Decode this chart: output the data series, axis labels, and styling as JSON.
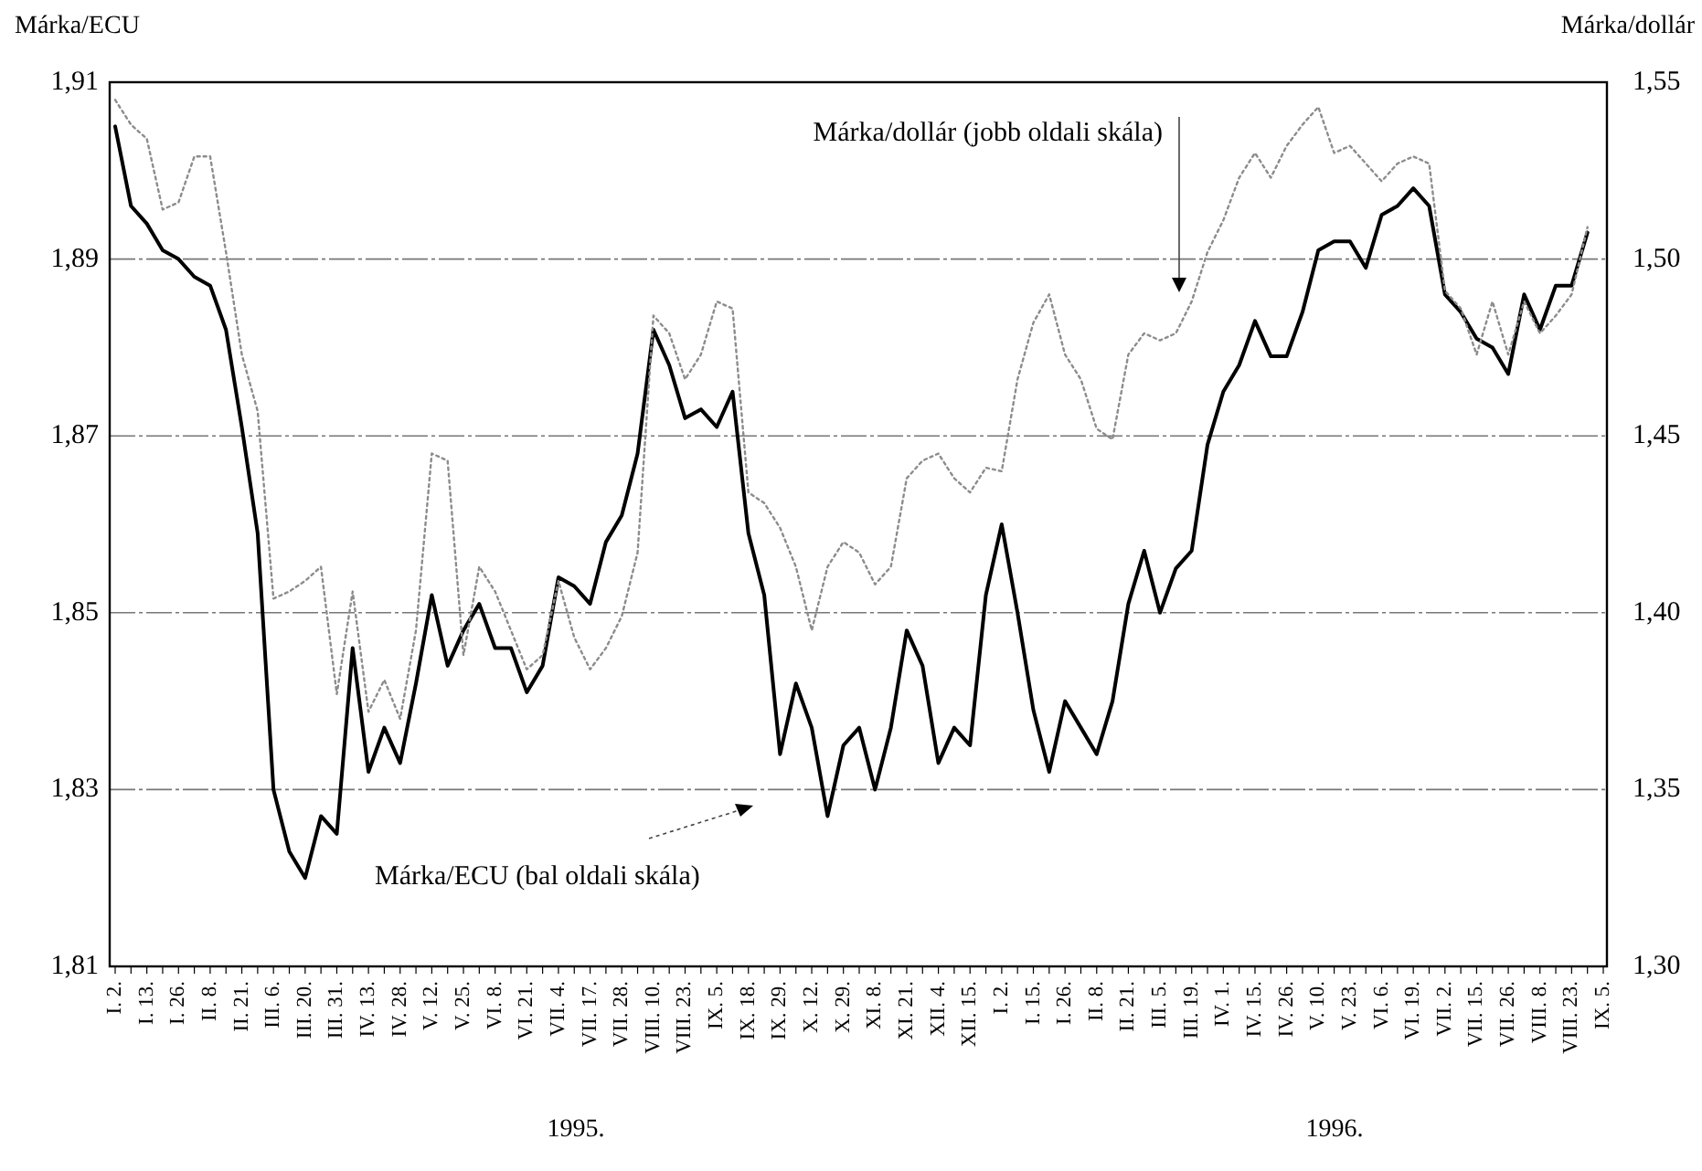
{
  "chart_data": {
    "type": "line",
    "ylabel": "Márka/ECU",
    "y2label": "Márka/dollár",
    "categories": [
      "I. 2.",
      null,
      "I. 13.",
      null,
      "I. 26.",
      null,
      "II. 8.",
      null,
      "II. 21.",
      null,
      "III. 6.",
      null,
      "III. 20.",
      null,
      "III. 31.",
      null,
      "IV. 13.",
      null,
      "IV. 28.",
      null,
      "V. 12.",
      null,
      "V. 25.",
      null,
      "VI. 8.",
      null,
      "VI. 21.",
      null,
      "VII. 4.",
      null,
      "VII. 17.",
      null,
      "VII. 28.",
      null,
      "VIII. 10.",
      null,
      "VIII. 23.",
      null,
      "IX. 5.",
      null,
      "IX. 18.",
      null,
      "IX. 29.",
      null,
      "X. 12.",
      null,
      "X. 29.",
      null,
      "XI. 8.",
      null,
      "XI. 21.",
      null,
      "XII. 4.",
      null,
      "XII. 15.",
      null,
      "I. 2.",
      null,
      "I. 15.",
      null,
      "I. 26.",
      null,
      "II. 8.",
      null,
      "II. 21.",
      null,
      "III. 5.",
      null,
      "III. 19.",
      null,
      "IV. 1.",
      null,
      "IV. 15.",
      null,
      "IV. 26.",
      null,
      "V. 10.",
      null,
      "V. 23.",
      null,
      "VI. 6.",
      null,
      "VI. 19.",
      null,
      "VII. 2.",
      null,
      "VII. 15.",
      null,
      "VII. 26.",
      null,
      "VIII. 8.",
      null,
      "VIII. 23.",
      null,
      "IX. 5."
    ],
    "series": [
      {
        "color": "#000000",
        "line_style": "solid",
        "values": [
          1.905,
          1.896,
          1.894,
          1.891,
          1.89,
          1.888,
          1.887,
          1.882,
          1.871,
          1.859,
          1.83,
          1.823,
          1.82,
          1.827,
          1.825,
          1.846,
          1.832,
          1.837,
          1.833,
          1.842,
          1.852,
          1.844,
          1.848,
          1.851,
          1.846,
          1.846,
          1.841,
          1.844,
          1.854,
          1.853,
          1.851,
          1.858,
          1.861,
          1.868,
          1.882,
          1.878,
          1.872,
          1.873,
          1.871,
          1.875,
          1.859,
          1.852,
          1.834,
          1.842,
          1.837,
          1.827,
          1.835,
          1.837,
          1.83,
          1.837,
          1.848,
          1.844,
          1.833,
          1.837,
          1.835,
          1.852,
          1.86,
          1.85,
          1.839,
          1.832,
          1.84,
          1.837,
          1.834,
          1.84,
          1.851,
          1.857,
          1.85,
          1.855,
          1.857,
          1.869,
          1.875,
          1.878,
          1.883,
          1.879,
          1.879,
          1.884,
          1.891,
          1.892,
          1.892,
          1.889,
          1.895,
          1.896,
          1.898,
          1.896,
          1.886,
          1.884,
          1.881,
          1.88,
          1.877,
          1.886,
          1.882,
          1.887,
          1.887,
          1.893,
          null
        ]
      },
      {
        "color": "#8c8c8c",
        "line_style": "dotted",
        "axis": "y2",
        "values": [
          1.545,
          1.538,
          1.534,
          1.514,
          1.516,
          1.529,
          1.529,
          1.502,
          1.473,
          1.457,
          1.404,
          1.406,
          1.409,
          1.413,
          1.377,
          1.406,
          1.372,
          1.381,
          1.37,
          1.395,
          1.445,
          1.443,
          1.388,
          1.413,
          1.406,
          1.395,
          1.384,
          1.388,
          1.409,
          1.393,
          1.384,
          1.39,
          1.399,
          1.417,
          1.484,
          1.479,
          1.466,
          1.473,
          1.488,
          1.486,
          1.434,
          1.431,
          1.424,
          1.413,
          1.395,
          1.413,
          1.42,
          1.417,
          1.408,
          1.413,
          1.438,
          1.443,
          1.445,
          1.438,
          1.434,
          1.441,
          1.44,
          1.466,
          1.482,
          1.49,
          1.473,
          1.466,
          1.452,
          1.449,
          1.473,
          1.479,
          1.477,
          1.479,
          1.488,
          1.502,
          1.511,
          1.523,
          1.53,
          1.523,
          1.532,
          1.538,
          1.543,
          1.53,
          1.532,
          1.527,
          1.522,
          1.527,
          1.529,
          1.527,
          1.491,
          1.486,
          1.473,
          1.488,
          1.473,
          1.488,
          1.479,
          1.484,
          1.49,
          1.509,
          null
        ]
      }
    ],
    "ylim": [
      1.81,
      1.91
    ],
    "yticks": [
      {
        "value": 1.81,
        "label": "1,81"
      },
      {
        "value": 1.83,
        "label": "1,83"
      },
      {
        "value": 1.85,
        "label": "1,85"
      },
      {
        "value": 1.87,
        "label": "1,87"
      },
      {
        "value": 1.89,
        "label": "1,89"
      },
      {
        "value": 1.91,
        "label": "1,91"
      }
    ],
    "y2lim": [
      1.3,
      1.55
    ],
    "y2ticks": [
      {
        "value": 1.3,
        "label": "1,30"
      },
      {
        "value": 1.35,
        "label": "1,35"
      },
      {
        "value": 1.4,
        "label": "1,40"
      },
      {
        "value": 1.45,
        "label": "1,45"
      },
      {
        "value": 1.5,
        "label": "1,50"
      },
      {
        "value": 1.55,
        "label": "1,55"
      }
    ],
    "grid": "y",
    "annotations": [
      "Márka/dollár (jobb oldali skála)",
      "Márka/ECU (bal oldali skála)",
      "1995.",
      "1996."
    ]
  }
}
